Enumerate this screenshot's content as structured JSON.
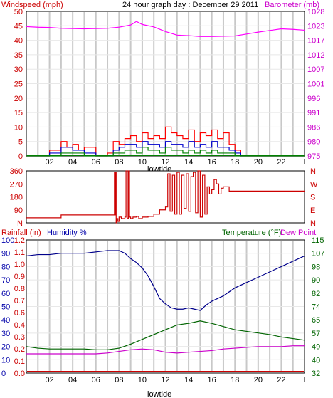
{
  "chart_data": [
    {
      "type": "line",
      "title": "24 hour graph day : December 29 2011",
      "left_axis_label": "Windspeed (mph)",
      "right_axis_label": "Barometer (mb)",
      "left_ticks": [
        "0",
        "5",
        "10",
        "15",
        "20",
        "25",
        "30",
        "35",
        "40",
        "45",
        "50"
      ],
      "right_ticks": [
        "975",
        "980",
        "986",
        "991",
        "996",
        "1001",
        "1007",
        "1012",
        "1017",
        "1023",
        "1028"
      ],
      "x_ticks": [
        "02",
        "04",
        "06",
        "08",
        "10",
        "12",
        "14",
        "16",
        "18",
        "20",
        "22",
        "l"
      ],
      "x_label": "lowtide",
      "ylim_left": [
        0,
        50
      ],
      "ylim_right": [
        975,
        1028
      ],
      "grid": true,
      "colors": {
        "wind_gust": "#ff0000",
        "wind_avg": "#0000cc",
        "wind_low": "#008000",
        "barometer": "#ff00ff",
        "text_left": "#cc0000",
        "text_right": "#cc00cc"
      },
      "series": [
        {
          "role": "barometer",
          "x": [
            0,
            1,
            2,
            3,
            4,
            5,
            6,
            7,
            8,
            9,
            9.5,
            10,
            11,
            12,
            13,
            14,
            15,
            16,
            17,
            18,
            19,
            20,
            21,
            22,
            23,
            24
          ],
          "values": [
            1022.4,
            1022.2,
            1022.1,
            1021.8,
            1021.7,
            1021.6,
            1021.7,
            1021.8,
            1022.2,
            1023,
            1024.3,
            1023.2,
            1022.3,
            1020.6,
            1019.3,
            1019.1,
            1018.8,
            1018.8,
            1018.9,
            1019,
            1019.7,
            1020.4,
            1021,
            1021.6,
            1021.4,
            1021.1
          ]
        },
        {
          "role": "gust",
          "x": [
            0,
            1,
            2,
            3,
            3.5,
            4,
            4.5,
            5,
            6,
            7,
            7.5,
            8,
            8.5,
            9,
            9.5,
            10,
            10.5,
            11,
            11.5,
            12,
            12.5,
            13,
            13.5,
            14,
            14.5,
            15,
            15.5,
            16,
            16.5,
            17,
            17.5,
            18,
            18.5,
            19,
            20,
            21,
            22,
            23,
            24
          ],
          "values": [
            0,
            0,
            2,
            5,
            3,
            4,
            2,
            3,
            0,
            1,
            5,
            4,
            6,
            7,
            5,
            8,
            6,
            7,
            6,
            10,
            8,
            7,
            6,
            9,
            5,
            8,
            7,
            9,
            6,
            8,
            4,
            2,
            0,
            0,
            0,
            0,
            0,
            0,
            0
          ]
        },
        {
          "role": "average",
          "x": [
            0,
            1,
            2,
            3,
            4,
            5,
            6,
            7,
            7.5,
            8,
            8.5,
            9,
            9.5,
            10,
            10.5,
            11,
            11.5,
            12,
            12.5,
            13,
            13.5,
            14,
            14.5,
            15,
            15.5,
            16,
            16.5,
            17,
            17.5,
            18,
            18.5,
            19,
            20,
            21,
            22,
            23,
            24
          ],
          "values": [
            0,
            0,
            1,
            3,
            2,
            1,
            0,
            0,
            2,
            3,
            4,
            4,
            3,
            5,
            4,
            4,
            3,
            5,
            4,
            4,
            3,
            5,
            3,
            4,
            3,
            5,
            3,
            3,
            2,
            1,
            0,
            0,
            0,
            0,
            0,
            0,
            0
          ]
        },
        {
          "role": "lull",
          "x": [
            0,
            1,
            2,
            3,
            4,
            5,
            6,
            7,
            7.5,
            8,
            8.5,
            9,
            9.5,
            10,
            10.5,
            11,
            11.5,
            12,
            12.5,
            13,
            13.5,
            14,
            14.5,
            15,
            15.5,
            16,
            16.5,
            17,
            17.5,
            18,
            19,
            20,
            21,
            22,
            23,
            24
          ],
          "values": [
            0,
            0,
            0,
            1,
            1,
            0,
            0,
            0,
            1,
            1,
            2,
            2,
            1,
            3,
            2,
            2,
            1,
            3,
            2,
            2,
            1,
            2,
            1,
            2,
            1,
            2,
            1,
            1,
            1,
            0,
            0,
            0,
            0,
            0,
            0,
            0
          ]
        }
      ]
    },
    {
      "type": "line",
      "left_ticks": [
        "N",
        "90",
        "180",
        "270",
        "360"
      ],
      "right_ticks": [
        "N",
        "E",
        "S",
        "W",
        "N"
      ],
      "ylim": [
        0,
        360
      ],
      "grid": false,
      "colors": {
        "direction": "#cc0000",
        "text_left": "#cc0000",
        "text_right": "#cc0000"
      },
      "series": [
        {
          "role": "wind_direction",
          "x": [
            0,
            1,
            2,
            2.9,
            3,
            4,
            5,
            6,
            7,
            7.5,
            7.6,
            7.65,
            7.7,
            7.75,
            7.8,
            7.9,
            8,
            8.2,
            8.5,
            8.6,
            8.7,
            8.8,
            8.9,
            9,
            9.2,
            9.5,
            9.7,
            10,
            10.5,
            11,
            11.5,
            12,
            12.2,
            12.4,
            12.6,
            12.8,
            13,
            13.2,
            13.4,
            13.6,
            13.8,
            14,
            14.2,
            14.4,
            14.6,
            14.8,
            15,
            15.2,
            15.4,
            15.6,
            15.8,
            16,
            16.2,
            16.4,
            16.6,
            16.8,
            17,
            17.5,
            18,
            19,
            20,
            21,
            22,
            23,
            24
          ],
          "values": [
            35,
            35,
            35,
            35,
            55,
            55,
            55,
            55,
            55,
            55,
            350,
            55,
            350,
            0,
            30,
            10,
            40,
            30,
            40,
            370,
            30,
            370,
            40,
            30,
            40,
            45,
            30,
            40,
            45,
            60,
            90,
            110,
            340,
            80,
            330,
            60,
            350,
            60,
            330,
            100,
            340,
            80,
            320,
            350,
            70,
            360,
            40,
            330,
            60,
            250,
            200,
            230,
            300,
            270,
            200,
            240,
            250,
            220,
            220,
            220,
            220,
            220,
            220,
            220,
            220
          ]
        }
      ]
    },
    {
      "type": "line",
      "left_axis_label": "Rainfall (in)",
      "left_axis_label2": "Humidity %",
      "right_axis_label": "Temperature (°F)",
      "right_axis_label2": "Dew Point",
      "humidity_ticks": [
        "0",
        "10",
        "20",
        "30",
        "40",
        "50",
        "60",
        "70",
        "80",
        "90",
        "100"
      ],
      "rain_ticks": [
        "0.0",
        "0.1",
        "0.2",
        "0.3",
        "0.4",
        "0.6",
        "0.7",
        "0.8",
        "0.9",
        "1.0",
        "1.1",
        "1.2"
      ],
      "temp_ticks": [
        "32",
        "40",
        "49",
        "57",
        "65",
        "74",
        "82",
        "90",
        "98",
        "107",
        "115"
      ],
      "x_ticks": [
        "02",
        "04",
        "06",
        "08",
        "10",
        "12",
        "14",
        "16",
        "18",
        "20",
        "22",
        "l"
      ],
      "x_label": "lowtide",
      "ylim_humidity": [
        0,
        100
      ],
      "ylim_temperature": [
        32,
        115
      ],
      "grid": true,
      "colors": {
        "humidity": "#00008b",
        "temperature": "#006400",
        "dew_point": "#cc00cc",
        "rain": "#cc0000",
        "text_rain": "#cc0000",
        "text_humidity": "#0000aa",
        "text_temp": "#006400",
        "text_dew": "#cc00cc"
      },
      "series": [
        {
          "role": "humidity",
          "x": [
            0,
            1,
            2,
            3,
            4,
            5,
            6,
            7,
            8,
            8.5,
            9,
            9.5,
            10,
            10.5,
            11,
            11.5,
            12,
            12.5,
            13,
            13.5,
            14,
            14.5,
            15,
            15.5,
            16,
            17,
            18,
            19,
            20,
            21,
            22,
            23,
            24
          ],
          "values": [
            88,
            89,
            89,
            90,
            90,
            90,
            91,
            92,
            92,
            90,
            86,
            83,
            79,
            73,
            65,
            56,
            52,
            49,
            48,
            48,
            49,
            48,
            47,
            51,
            54,
            58,
            64,
            68,
            72,
            76,
            80,
            84,
            88
          ]
        },
        {
          "role": "temperature",
          "x": [
            0,
            1,
            2,
            3,
            4,
            5,
            6,
            7,
            8,
            9,
            10,
            11,
            12,
            13,
            14,
            15,
            16,
            17,
            18,
            19,
            20,
            21,
            22,
            23,
            24
          ],
          "values": [
            48.5,
            47.5,
            47,
            47,
            47,
            47,
            46.5,
            46.5,
            47.5,
            50,
            53,
            56,
            59,
            62,
            63,
            64.5,
            63,
            61,
            59,
            58,
            57,
            56,
            54.5,
            53.5,
            52.5
          ]
        },
        {
          "role": "dew_point",
          "x": [
            0,
            1,
            2,
            3,
            4,
            5,
            6,
            7,
            8,
            9,
            10,
            11,
            12,
            13,
            14,
            15,
            16,
            17,
            18,
            19,
            20,
            21,
            22,
            23,
            24
          ],
          "values": [
            44,
            44,
            44,
            44,
            44,
            44,
            44,
            44.5,
            45.5,
            46.5,
            47,
            46.5,
            45,
            44.5,
            45,
            45.5,
            46,
            47,
            47.5,
            48,
            48.5,
            48.5,
            48.5,
            49,
            49
          ]
        },
        {
          "role": "rainfall",
          "x": [
            0,
            24
          ],
          "values": [
            0,
            0
          ]
        }
      ]
    }
  ]
}
